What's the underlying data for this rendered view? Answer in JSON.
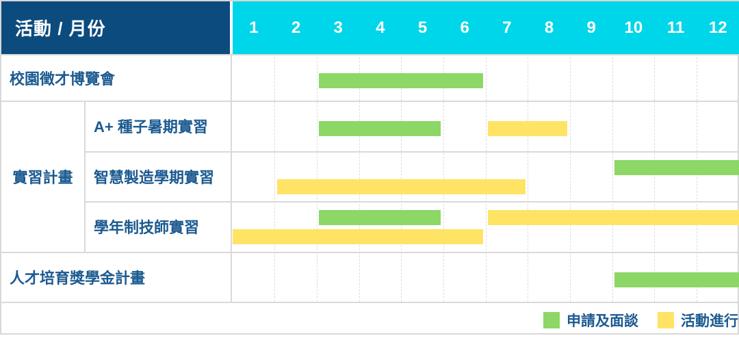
{
  "title": {
    "header_label": "活動 / 月份"
  },
  "group": {
    "label": "實習計畫"
  },
  "colors": {
    "navy": "#0c4b7e",
    "cyan": "#00d6e9",
    "green": "#8cd765",
    "yellow": "#ffe364",
    "label_text": "#1b5a90",
    "grid_line": "#d9d9d9",
    "month_text": "#ffffff"
  },
  "chart_data": {
    "type": "gantt",
    "x_axis": {
      "title": "月份",
      "ticks": [
        "1",
        "2",
        "3",
        "4",
        "5",
        "6",
        "7",
        "8",
        "9",
        "10",
        "11",
        "12"
      ],
      "range": [
        1,
        12
      ]
    },
    "grid": "monthly-columns-dashed",
    "rows": [
      {
        "label": "校園徵才博覽會",
        "group": null,
        "bars": [
          {
            "series": "申請及面談",
            "color": "green",
            "start_month": 3,
            "end_month": 6,
            "lane": "single"
          }
        ]
      },
      {
        "label": "A+ 種子暑期實習",
        "group": "實習計畫",
        "bars": [
          {
            "series": "申請及面談",
            "color": "green",
            "start_month": 3,
            "end_month": 5,
            "lane": "single"
          },
          {
            "series": "活動進行",
            "color": "yellow",
            "start_month": 7,
            "end_month": 8,
            "lane": "single"
          }
        ]
      },
      {
        "label": "智慧製造學期實習",
        "group": "實習計畫",
        "bars": [
          {
            "series": "申請及面談",
            "color": "green",
            "start_month": 10,
            "end_month": 12,
            "lane": "top"
          },
          {
            "series": "活動進行",
            "color": "yellow",
            "start_month": 2,
            "end_month": 7,
            "lane": "bottom"
          }
        ]
      },
      {
        "label": "學年制技師實習",
        "group": "實習計畫",
        "bars": [
          {
            "series": "申請及面談",
            "color": "green",
            "start_month": 3,
            "end_month": 5,
            "lane": "top"
          },
          {
            "series": "活動進行",
            "color": "yellow",
            "start_month": 7,
            "end_month": 12,
            "lane": "top"
          },
          {
            "series": "活動進行",
            "color": "yellow",
            "start_month": 1,
            "end_month": 6,
            "lane": "bottom"
          }
        ]
      },
      {
        "label": "人才培育獎學金計畫",
        "group": null,
        "bars": [
          {
            "series": "申請及面談",
            "color": "green",
            "start_month": 10,
            "end_month": 12,
            "lane": "single"
          }
        ]
      }
    ],
    "legend": [
      {
        "label": "申請及面談",
        "color": "green"
      },
      {
        "label": "活動進行",
        "color": "yellow"
      }
    ],
    "legend_position": "bottom-right"
  }
}
